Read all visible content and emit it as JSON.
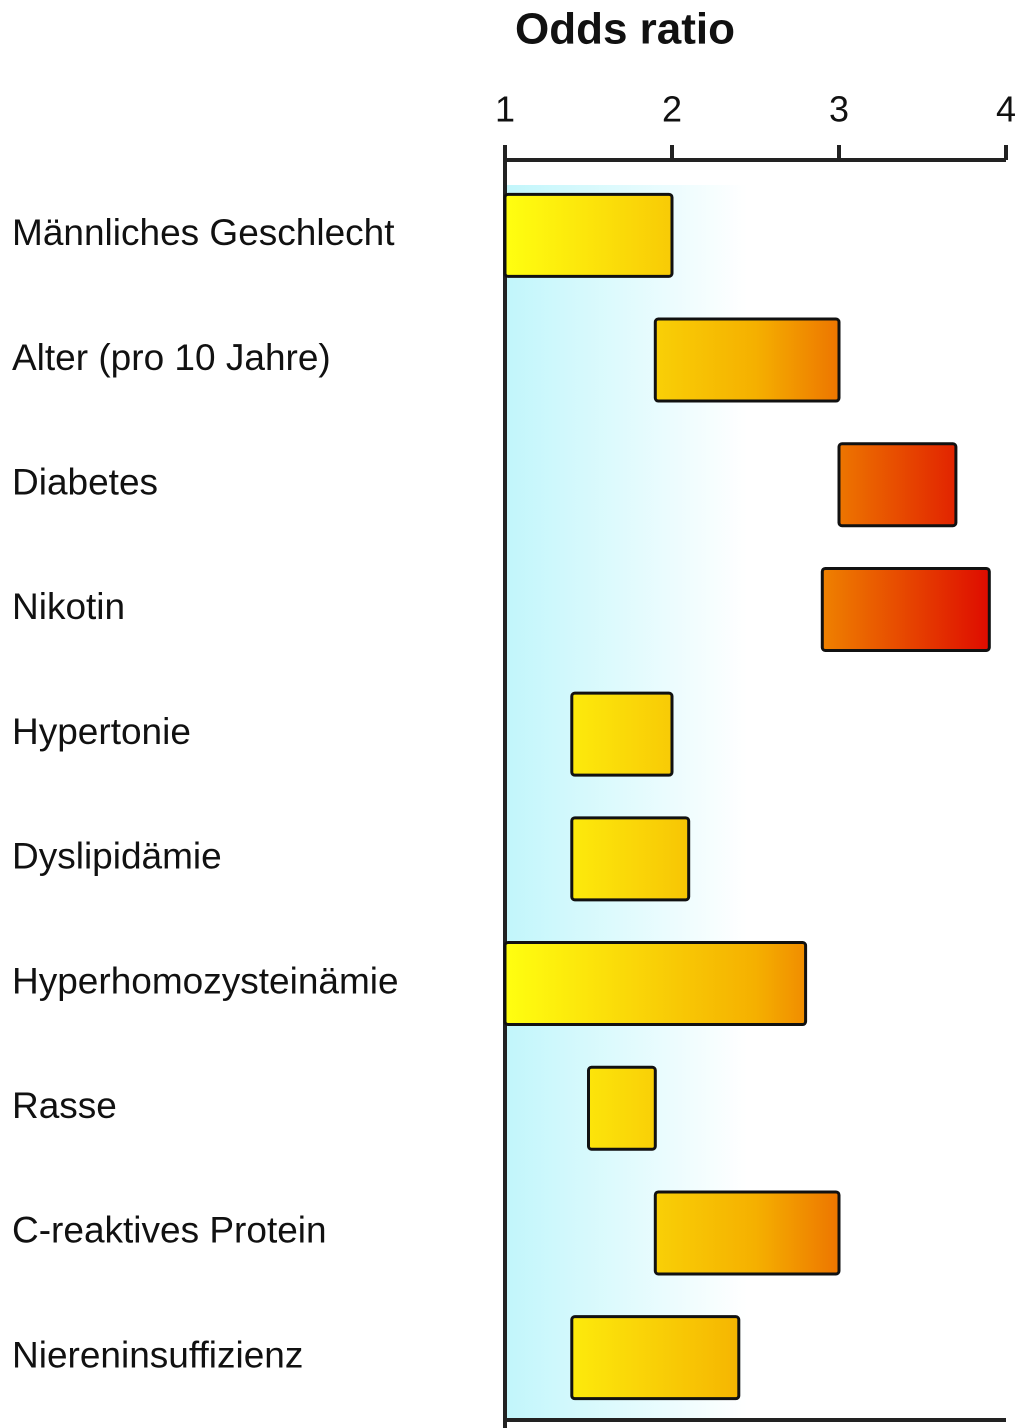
{
  "chart_data": {
    "type": "range_bar",
    "title": "Odds ratio",
    "categories": [
      "Männliches Geschlecht",
      "Alter (pro 10 Jahre)",
      "Diabetes",
      "Nikotin",
      "Hypertonie",
      "Dyslipidämie",
      "Hyperhomozysteinämie",
      "Rasse",
      "C-reaktives Protein",
      "Niereninsuffizienz"
    ],
    "low": [
      1,
      1.9,
      3.0,
      2.9,
      1.4,
      1.4,
      1,
      1.5,
      1.9,
      1.4
    ],
    "high": [
      2,
      3,
      3.7,
      3.9,
      2.0,
      2.1,
      2.8,
      1.9,
      3,
      2.4
    ],
    "xlim": [
      1,
      4
    ],
    "xticks": [
      1,
      2,
      3,
      4
    ],
    "colors": [
      "#ffff10",
      "#f5b000",
      "#dd0000"
    ]
  }
}
